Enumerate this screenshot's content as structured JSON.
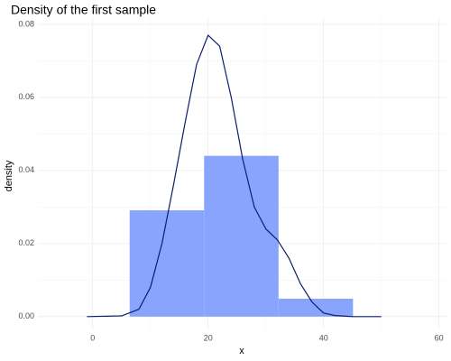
{
  "chart_data": {
    "type": "histogram",
    "title": "Density of the first sample",
    "x_label": "x",
    "y_label": "density",
    "bins": [
      6.4,
      19.3,
      32.2,
      45.1
    ],
    "values": [
      0.0291,
      0.044,
      0.0049
    ],
    "color": "#88a4fc",
    "density_line": {
      "color": "#0d1d6b",
      "x": [
        -1,
        5,
        8,
        10,
        12,
        14,
        16,
        18,
        20,
        22,
        24,
        26,
        28,
        30,
        32,
        34,
        36,
        38,
        40,
        42,
        45,
        50
      ],
      "values": [
        0,
        0.0002,
        0.002,
        0.008,
        0.02,
        0.036,
        0.053,
        0.069,
        0.077,
        0.074,
        0.06,
        0.043,
        0.03,
        0.024,
        0.021,
        0.016,
        0.009,
        0.004,
        0.001,
        0.0003,
        0,
        0
      ]
    },
    "xlim": [
      -9.5,
      61.3
    ],
    "xticks": [
      0,
      20,
      40,
      60
    ],
    "ylim": [
      -0.0035,
      0.0817
    ],
    "yticks": [
      {
        "value": 0,
        "label": "0.00"
      },
      {
        "value": 0.02,
        "label": "0.02"
      },
      {
        "value": 0.04,
        "label": "0.04"
      },
      {
        "value": 0.06,
        "label": "0.06"
      },
      {
        "value": 0.08,
        "label": "0.08"
      }
    ],
    "grid": true
  }
}
